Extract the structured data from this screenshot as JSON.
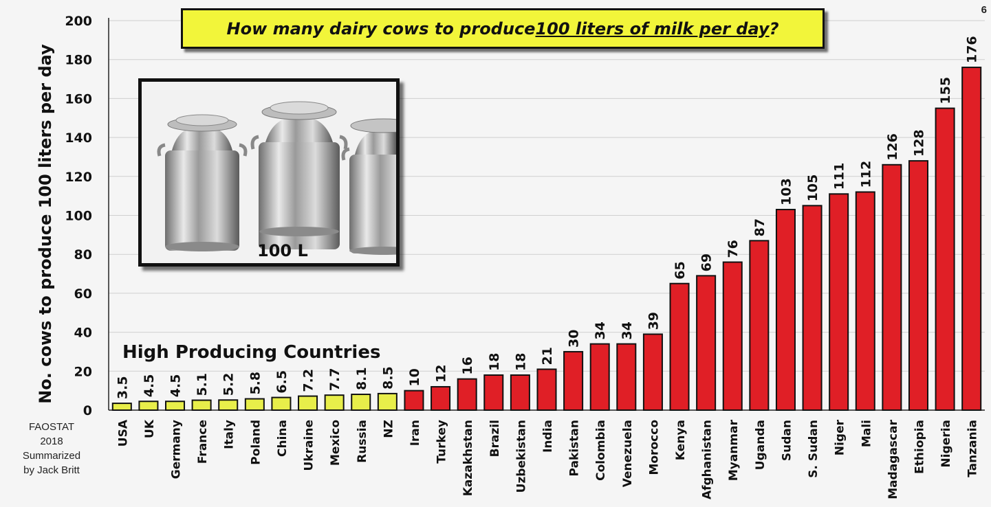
{
  "title": {
    "prefix": "How many dairy cows to produce ",
    "underlined": "100 liters of milk per day",
    "suffix": "?"
  },
  "photo": {
    "label": "100 L"
  },
  "group_label": "High Producing Countries",
  "source_lines": [
    "FAOSTAT",
    "2018",
    "Summarized",
    "by Jack Britt"
  ],
  "page_number": "6",
  "colors": {
    "high": "#e8ee4a",
    "low": "#e01f26",
    "grid": "#cfcfcf",
    "title_bg": "#f2f53a"
  },
  "chart_data": {
    "type": "bar",
    "title": "How many dairy cows to produce 100 liters of milk per day?",
    "xlabel": "",
    "ylabel": "No. cows to produce 100 liters per day",
    "ylim": [
      0,
      200
    ],
    "yticks": [
      0,
      20,
      40,
      60,
      80,
      100,
      120,
      140,
      160,
      180,
      200
    ],
    "grid": true,
    "categories": [
      "USA",
      "UK",
      "Germany",
      "France",
      "Italy",
      "Poland",
      "China",
      "Ukraine",
      "Mexico",
      "Russia",
      "NZ",
      "Iran",
      "Turkey",
      "Kazakhstan",
      "Brazil",
      "Uzbekistan",
      "India",
      "Pakistan",
      "Colombia",
      "Venezuela",
      "Morocco",
      "Kenya",
      "Afghanistan",
      "Myanmar",
      "Uganda",
      "Sudan",
      "S. Sudan",
      "Niger",
      "Mali",
      "Madagascar",
      "Ethiopia",
      "Nigeria",
      "Tanzania"
    ],
    "values": [
      3.5,
      4.5,
      4.5,
      5.1,
      5.2,
      5.8,
      6.5,
      7.2,
      7.7,
      8.1,
      8.5,
      10,
      12,
      16,
      18,
      18,
      21,
      30,
      34,
      34,
      39,
      65,
      69,
      76,
      87,
      103,
      105,
      111,
      112,
      126,
      128,
      155,
      176
    ],
    "value_labels": [
      "3.5",
      "4.5",
      "4.5",
      "5.1",
      "5.2",
      "5.8",
      "6.5",
      "7.2",
      "7.7",
      "8.1",
      "8.5",
      "10",
      "12",
      "16",
      "18",
      "18",
      "21",
      "30",
      "34",
      "34",
      "39",
      "65",
      "69",
      "76",
      "87",
      "103",
      "105",
      "111",
      "112",
      "126",
      "128",
      "155",
      "176"
    ],
    "high_producing_count": 11
  }
}
